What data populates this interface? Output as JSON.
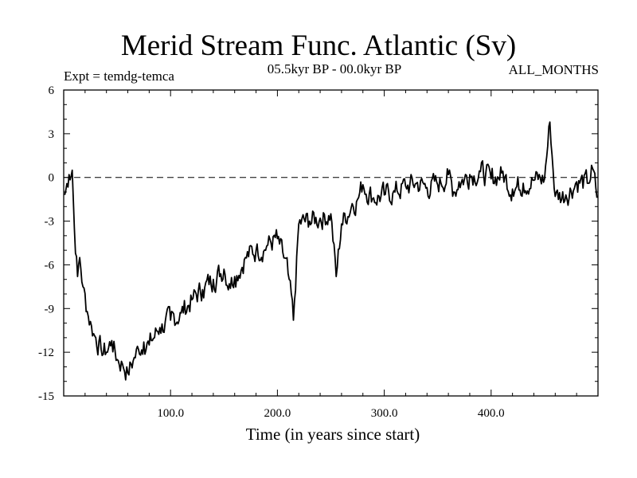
{
  "chart_data": {
    "type": "line",
    "title": "Merid Stream Func. Atlantic (Sv)",
    "subtitle": "05.5kyr BP - 00.0kyr BP",
    "experiment_label": "Expt = temdg-temca",
    "months_label": "ALL_MONTHS",
    "xlabel": "Time (in years since start)",
    "ylabel": "",
    "xlim": [
      0,
      500
    ],
    "ylim": [
      -15,
      6
    ],
    "x_ticks": [
      100,
      200,
      300,
      400
    ],
    "x_tick_labels": [
      "100.0",
      "200.0",
      "300.0",
      "400.0"
    ],
    "y_ticks": [
      -15,
      -12,
      -9,
      -6,
      -3,
      0,
      3,
      6
    ],
    "y_tick_labels": [
      "-15",
      "-12",
      "-9",
      "-6",
      "-3",
      "0",
      "3",
      "6"
    ],
    "reference_line": 0,
    "grid": false,
    "series": [
      {
        "name": "Merid Stream Func. Atlantic",
        "x": [
          1,
          5,
          8,
          10,
          13,
          15,
          18,
          22,
          26,
          30,
          35,
          40,
          45,
          50,
          55,
          60,
          65,
          70,
          75,
          80,
          90,
          100,
          110,
          120,
          130,
          140,
          150,
          155,
          160,
          170,
          180,
          190,
          200,
          210,
          215,
          220,
          230,
          240,
          250,
          255,
          260,
          270,
          275,
          280,
          290,
          300,
          310,
          320,
          330,
          340,
          350,
          360,
          365,
          370,
          380,
          390,
          400,
          410,
          420,
          430,
          440,
          450,
          455,
          460,
          470,
          480,
          490,
          495,
          499
        ],
        "values": [
          -1.2,
          0.2,
          0.5,
          -3.5,
          -6.8,
          -5.5,
          -7.5,
          -9.2,
          -10.2,
          -11.0,
          -11.8,
          -12.0,
          -11.2,
          -12.5,
          -12.8,
          -13.4,
          -12.6,
          -11.8,
          -11.3,
          -11.5,
          -10.3,
          -9.8,
          -9.3,
          -8.4,
          -7.7,
          -7.0,
          -6.3,
          -7.3,
          -6.8,
          -5.5,
          -5.0,
          -4.7,
          -4.2,
          -6.6,
          -9.8,
          -3.2,
          -3.0,
          -2.8,
          -2.5,
          -6.8,
          -3.2,
          -1.8,
          -1.5,
          -0.5,
          -1.4,
          -1.2,
          -1.0,
          -0.6,
          -0.4,
          -0.7,
          -0.5,
          0.2,
          -1.0,
          -0.3,
          0.2,
          0.4,
          -0.1,
          0.3,
          -0.8,
          -0.4,
          -0.2,
          -0.1,
          3.8,
          -1.3,
          -1.2,
          -0.3,
          -0.4,
          0.6,
          -1.4
        ]
      }
    ]
  }
}
